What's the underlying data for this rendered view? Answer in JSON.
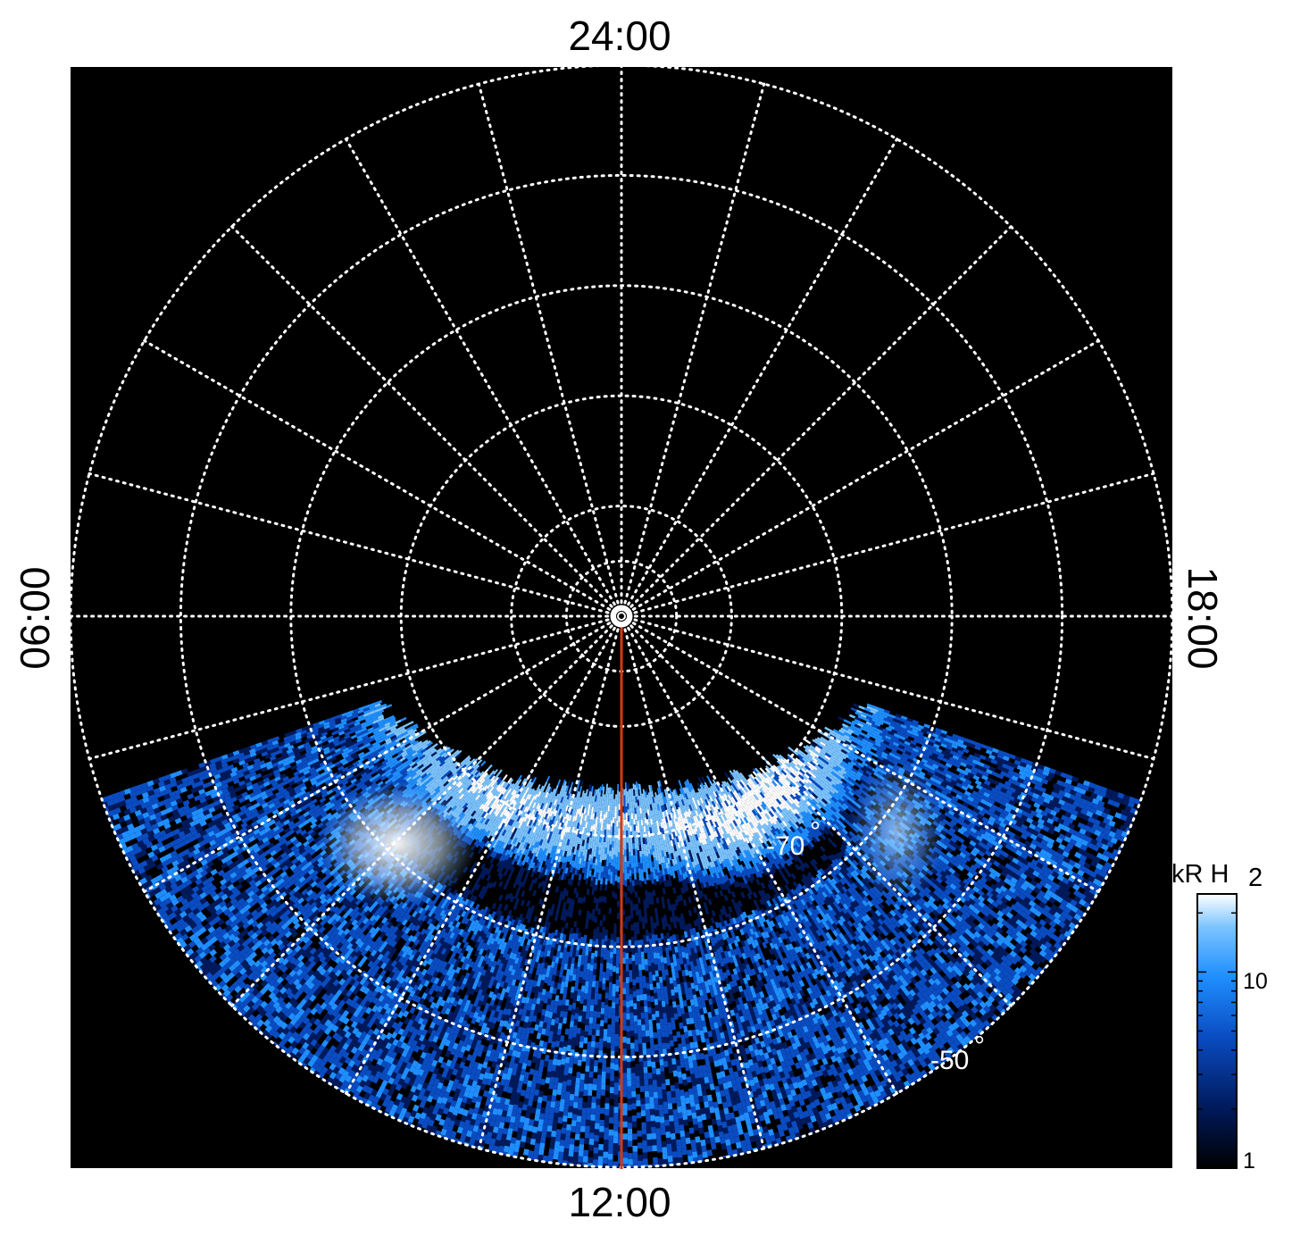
{
  "chart_data": {
    "type": "heatmap",
    "projection": "polar",
    "title": "",
    "local_time_labels": {
      "top": "24:00",
      "left": "06:00",
      "right": "18:00",
      "bottom": "12:00"
    },
    "radial_range_deg": [
      -90,
      -40
    ],
    "latitude_grid_deg": [
      -85,
      -80,
      -70,
      -60,
      -50,
      -40
    ],
    "latitude_labels": [
      {
        "text": "-70",
        "unit": "°",
        "lat": -70,
        "local_time_h": 13.2
      },
      {
        "text": "-50",
        "unit": "°",
        "lat": -50,
        "local_time_h": 14.0
      }
    ],
    "meridian_step_h": 1,
    "grid": true,
    "grid_style": "dotted",
    "grid_color": "#ffffff",
    "background_color": "#000000",
    "highlight_meridian": {
      "local_time_h": 12,
      "color": "#d23a10",
      "from_lat": -89,
      "to_lat": -40
    },
    "observed_coverage": {
      "local_time_h": [
        7.3,
        16.7
      ],
      "latitude_deg": [
        -75,
        -40
      ]
    },
    "emission_features": [
      {
        "label": "bright dawn-side arc",
        "local_time_h": 9.6,
        "lat": -69,
        "intensity_kR": 24
      },
      {
        "label": "main oval arcs",
        "local_time_h": 12,
        "lat": -72,
        "intensity_kR": 12
      },
      {
        "label": "dusk-side brightening",
        "local_time_h": 14.3,
        "lat": -71,
        "intensity_kR": 16
      }
    ],
    "colorbar": {
      "label_main": "kR H",
      "label_sub": "2",
      "scale": "log",
      "range": [
        1,
        25
      ],
      "ticks": [
        1,
        10
      ],
      "tick_labels": [
        "1",
        "10"
      ],
      "colors": [
        "#000000",
        "#001a5c",
        "#0a4cc2",
        "#1f8fff",
        "#7cc4ff",
        "#ffffff"
      ]
    }
  }
}
